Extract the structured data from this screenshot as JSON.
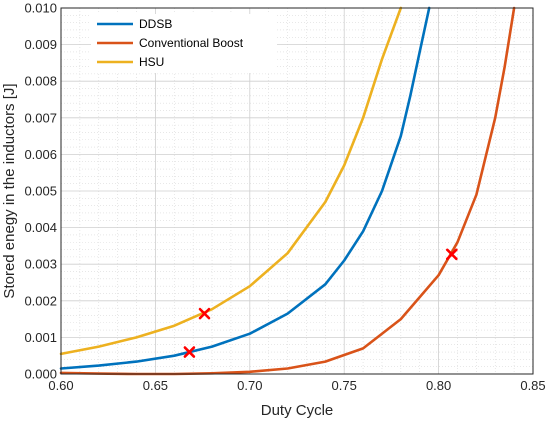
{
  "chart_data": {
    "type": "line",
    "title": "",
    "xlabel": "Duty Cycle",
    "ylabel": "Stored enegy in the inductors [J]",
    "xlim": [
      0.6,
      0.85
    ],
    "ylim": [
      0,
      0.01
    ],
    "x_ticks": [
      "0.60",
      "0.65",
      "0.70",
      "0.75",
      "0.80",
      "0.85"
    ],
    "y_ticks": [
      "0.000",
      "0.001",
      "0.002",
      "0.003",
      "0.004",
      "0.005",
      "0.006",
      "0.007",
      "0.008",
      "0.009",
      "0.010"
    ],
    "grid": true,
    "minor_grid": true,
    "legend_position": "top-left",
    "series": [
      {
        "name": "DDSB",
        "color": "#0072BD",
        "x": [
          0.6,
          0.62,
          0.64,
          0.66,
          0.68,
          0.7,
          0.72,
          0.74,
          0.75,
          0.76,
          0.77,
          0.78,
          0.785,
          0.79,
          0.795
        ],
        "y": [
          0.00015,
          0.00023,
          0.00034,
          0.0005,
          0.00075,
          0.0011,
          0.00165,
          0.00245,
          0.0031,
          0.0039,
          0.005,
          0.0065,
          0.0076,
          0.0088,
          0.01
        ]
      },
      {
        "name": "Conventional Boost",
        "color": "#D95319",
        "x": [
          0.6,
          0.62,
          0.64,
          0.66,
          0.68,
          0.7,
          0.72,
          0.74,
          0.76,
          0.78,
          0.8,
          0.81,
          0.82,
          0.83,
          0.835,
          0.84
        ],
        "y": [
          3e-05,
          1e-05,
          0.0,
          0.0,
          2e-05,
          6e-05,
          0.00015,
          0.00034,
          0.0007,
          0.0015,
          0.0027,
          0.0036,
          0.0049,
          0.007,
          0.0084,
          0.01
        ]
      },
      {
        "name": "HSU",
        "color": "#EDB120",
        "x": [
          0.6,
          0.62,
          0.64,
          0.66,
          0.68,
          0.7,
          0.72,
          0.74,
          0.75,
          0.76,
          0.77,
          0.775,
          0.78
        ],
        "y": [
          0.00055,
          0.00075,
          0.001,
          0.00132,
          0.00177,
          0.0024,
          0.0033,
          0.0047,
          0.0057,
          0.007,
          0.0086,
          0.0093,
          0.01
        ]
      }
    ],
    "markers": [
      {
        "x": 0.668,
        "y": 0.0006,
        "color": "#FF0000",
        "shape": "x"
      },
      {
        "x": 0.676,
        "y": 0.00165,
        "color": "#FF0000",
        "shape": "x"
      },
      {
        "x": 0.807,
        "y": 0.00327,
        "color": "#FF0000",
        "shape": "x"
      }
    ]
  }
}
